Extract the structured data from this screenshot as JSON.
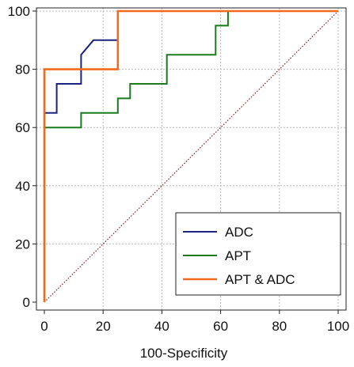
{
  "chart_data": {
    "type": "line",
    "title": "",
    "xlabel": "100-Specificity",
    "ylabel": "",
    "xlim": [
      0,
      100
    ],
    "ylim": [
      0,
      100
    ],
    "x_ticks": [
      0,
      20,
      40,
      60,
      80,
      100
    ],
    "y_ticks": [
      0,
      20,
      40,
      60,
      80,
      100
    ],
    "x_tick_labels": [
      "0",
      "20",
      "40",
      "60",
      "80",
      "100"
    ],
    "y_tick_labels": [
      "0",
      "20",
      "40",
      "60",
      "80",
      "100"
    ],
    "grid": true,
    "legend_position": "bottom-right",
    "reference_line": {
      "points": [
        [
          0,
          0
        ],
        [
          100,
          100
        ]
      ],
      "color": "#8b1a1a",
      "style": "dotted"
    },
    "series": [
      {
        "name": "ADC",
        "color": "#1a237e",
        "points": [
          [
            0,
            0
          ],
          [
            0,
            65
          ],
          [
            4.2,
            65
          ],
          [
            4.2,
            75
          ],
          [
            12.5,
            75
          ],
          [
            12.5,
            85
          ],
          [
            16.7,
            90
          ],
          [
            25,
            90
          ],
          [
            25,
            100
          ],
          [
            100,
            100
          ]
        ]
      },
      {
        "name": "APT",
        "color": "#1b7a1b",
        "points": [
          [
            0,
            0
          ],
          [
            0,
            60
          ],
          [
            4.2,
            60
          ],
          [
            12.5,
            60
          ],
          [
            12.5,
            65
          ],
          [
            25,
            65
          ],
          [
            25,
            70
          ],
          [
            29.2,
            70
          ],
          [
            29.2,
            75
          ],
          [
            41.7,
            75
          ],
          [
            41.7,
            85
          ],
          [
            58.3,
            85
          ],
          [
            58.3,
            95
          ],
          [
            62.5,
            95
          ],
          [
            62.5,
            100
          ],
          [
            100,
            100
          ]
        ]
      },
      {
        "name": "APT & ADC",
        "color": "#f26b1d",
        "points": [
          [
            0,
            0
          ],
          [
            0,
            80
          ],
          [
            25,
            80
          ],
          [
            25,
            100
          ],
          [
            100,
            100
          ]
        ]
      }
    ]
  }
}
